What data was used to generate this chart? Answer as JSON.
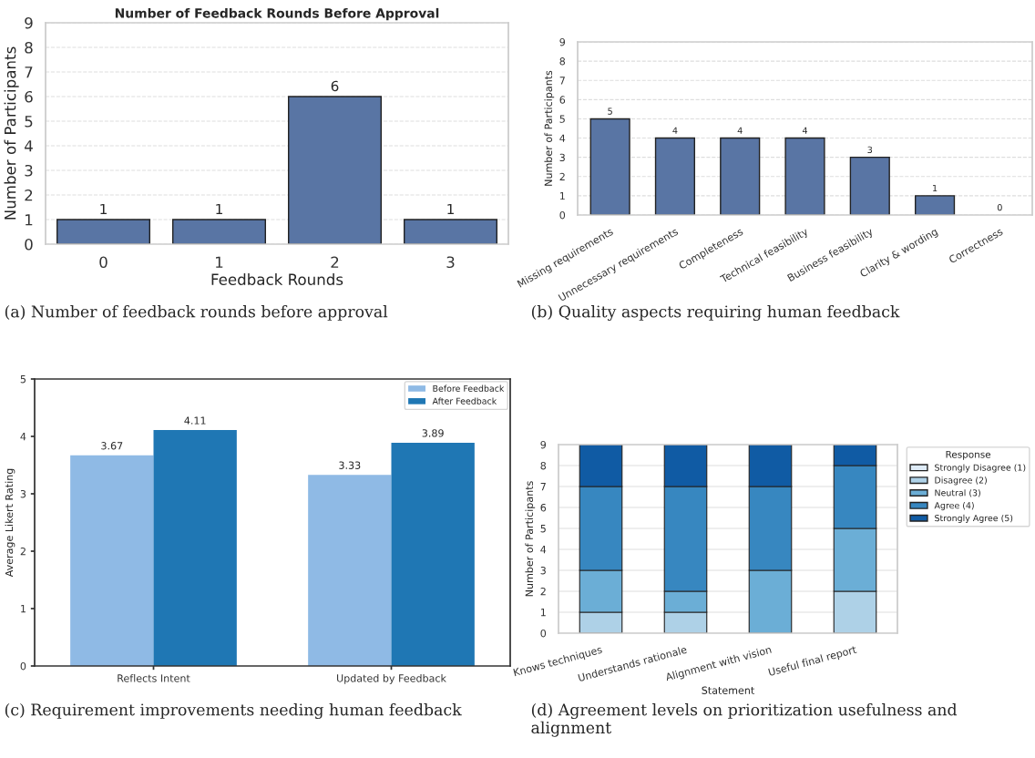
{
  "chart_data": [
    {
      "type": "bar",
      "title": "Number of Feedback Rounds Before Approval",
      "xlabel": "Feedback Rounds",
      "ylabel": "Number of Participants",
      "categories": [
        "0",
        "1",
        "2",
        "3"
      ],
      "values": [
        1,
        1,
        6,
        1
      ],
      "color": "#5975a4",
      "ylim": [
        0,
        9
      ],
      "yticks": [
        0,
        1,
        2,
        3,
        4,
        5,
        6,
        7,
        8,
        9
      ],
      "grid": "y",
      "data_labels": true,
      "annotations": [
        "(a) Number of feedback rounds before approval"
      ]
    },
    {
      "type": "bar",
      "ylabel": "Number of Participants",
      "categories": [
        "Missing requirements",
        "Unnecessary requirements",
        "Completeness",
        "Technical feasibility",
        "Business feasibility",
        "Clarity & wording",
        "Correctness"
      ],
      "values": [
        5,
        4,
        4,
        4,
        3,
        1,
        0
      ],
      "color": "#5975a4",
      "ylim": [
        0,
        9
      ],
      "yticks": [
        0,
        1,
        2,
        3,
        4,
        5,
        6,
        7,
        8,
        9
      ],
      "grid": "y",
      "data_labels": true,
      "annotations": [
        "(b) Quality aspects requiring human feedback"
      ]
    },
    {
      "type": "bar",
      "ylabel": "Average Likert Rating",
      "categories": [
        "Reflects Intent",
        "Updated by Feedback"
      ],
      "series": [
        {
          "name": "Before Feedback",
          "color": "#8fbae5",
          "values": [
            3.67,
            3.33
          ]
        },
        {
          "name": "After Feedback",
          "color": "#1f77b4",
          "values": [
            4.11,
            3.89
          ]
        }
      ],
      "ylim": [
        0,
        5
      ],
      "yticks": [
        0,
        1,
        2,
        3,
        4,
        5
      ],
      "legend": "top right",
      "data_labels": true,
      "annotations": [
        "(c) Requirement improvements needing human feedback"
      ]
    },
    {
      "type": "bar",
      "stacked": true,
      "xlabel": "Statement",
      "ylabel": "Number of Participants",
      "legend_title": "Response",
      "categories": [
        "Knows techniques",
        "Understands rationale",
        "Alignment with vision",
        "Useful final report"
      ],
      "series": [
        {
          "name": "Strongly Disagree (1)",
          "color": "#deebf7",
          "values": [
            0,
            0,
            0,
            0
          ]
        },
        {
          "name": "Disagree (2)",
          "color": "#aed1e7",
          "values": [
            1,
            1,
            0,
            2
          ]
        },
        {
          "name": "Neutral (3)",
          "color": "#6baed6",
          "values": [
            2,
            1,
            3,
            3
          ]
        },
        {
          "name": "Agree (4)",
          "color": "#3787c0",
          "values": [
            4,
            5,
            4,
            3
          ]
        },
        {
          "name": "Strongly Agree (5)",
          "color": "#105ba4",
          "values": [
            2,
            2,
            2,
            1
          ]
        }
      ],
      "ylim": [
        0,
        9
      ],
      "yticks": [
        0,
        1,
        2,
        3,
        4,
        5,
        6,
        7,
        8,
        9
      ],
      "grid": "y",
      "legend": "right",
      "annotations": [
        "(d) Agreement levels on prioritization usefulness and alignment"
      ]
    }
  ]
}
